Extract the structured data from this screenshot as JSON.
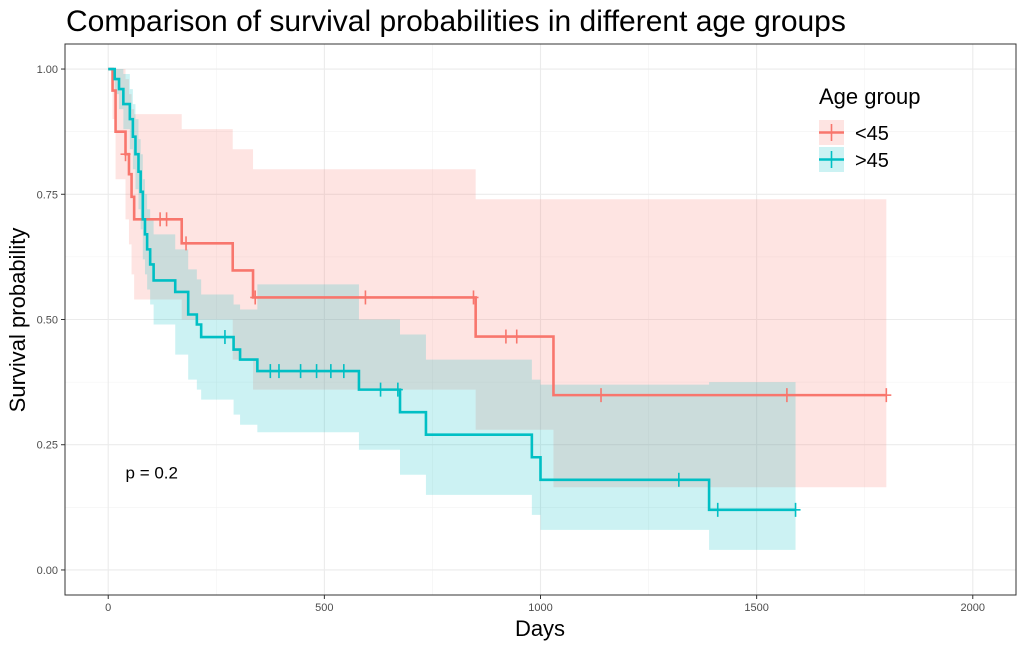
{
  "chart_data": {
    "type": "line",
    "subtype": "kaplan-meier survival curve with confidence bands",
    "title": "Comparison of survival probabilities in different age groups",
    "xlabel": "Days",
    "ylabel": "Survival probability",
    "xlim": [
      -100,
      2100
    ],
    "ylim": [
      -0.05,
      1.05
    ],
    "xticks": [
      0,
      500,
      1000,
      1500,
      2000
    ],
    "xtick_labels": [
      "0",
      "500",
      "1000",
      "1500",
      "2000"
    ],
    "yticks": [
      0,
      0.25,
      0.5,
      0.75,
      1.0
    ],
    "ytick_labels": [
      "0.00",
      "0.25",
      "0.50",
      "0.75",
      "1.00"
    ],
    "grid": true,
    "legend": {
      "title": "Age group",
      "position": "top-right"
    },
    "annotation": "p = 0.2",
    "annotation_x": 40,
    "annotation_y": 0.195,
    "series": [
      {
        "name": "<45",
        "color": "#F8766D",
        "band_color": "#F8766D",
        "steps": [
          [
            0,
            1.0
          ],
          [
            10,
            0.957
          ],
          [
            17,
            0.875
          ],
          [
            40,
            0.83
          ],
          [
            48,
            0.79
          ],
          [
            54,
            0.745
          ],
          [
            60,
            0.7
          ],
          [
            170,
            0.652
          ],
          [
            288,
            0.598
          ],
          [
            335,
            0.544
          ],
          [
            850,
            0.466
          ],
          [
            1030,
            0.349
          ],
          [
            1800,
            0.349
          ]
        ],
        "lower": [
          [
            0,
            1.0
          ],
          [
            10,
            0.9
          ],
          [
            17,
            0.78
          ],
          [
            40,
            0.7
          ],
          [
            48,
            0.65
          ],
          [
            54,
            0.59
          ],
          [
            60,
            0.54
          ],
          [
            170,
            0.5
          ],
          [
            288,
            0.42
          ],
          [
            335,
            0.36
          ],
          [
            850,
            0.28
          ],
          [
            1030,
            0.165
          ],
          [
            1800,
            0.165
          ]
        ],
        "upper": [
          [
            0,
            1.0
          ],
          [
            10,
            1.0
          ],
          [
            17,
            1.0
          ],
          [
            40,
            0.98
          ],
          [
            48,
            0.95
          ],
          [
            54,
            0.92
          ],
          [
            60,
            0.91
          ],
          [
            170,
            0.88
          ],
          [
            288,
            0.84
          ],
          [
            335,
            0.8
          ],
          [
            850,
            0.74
          ],
          [
            1030,
            0.74
          ],
          [
            1800,
            0.74
          ]
        ],
        "censored": [
          [
            40,
            0.83
          ],
          [
            120,
            0.7
          ],
          [
            135,
            0.7
          ],
          [
            180,
            0.652
          ],
          [
            340,
            0.544
          ],
          [
            595,
            0.544
          ],
          [
            845,
            0.544
          ],
          [
            920,
            0.466
          ],
          [
            945,
            0.466
          ],
          [
            1140,
            0.349
          ],
          [
            1570,
            0.349
          ],
          [
            1800,
            0.349
          ]
        ]
      },
      {
        "name": ">45",
        "color": "#00BFC4",
        "band_color": "#00BFC4",
        "steps": [
          [
            0,
            1.0
          ],
          [
            15,
            0.98
          ],
          [
            25,
            0.96
          ],
          [
            35,
            0.93
          ],
          [
            50,
            0.9
          ],
          [
            57,
            0.865
          ],
          [
            63,
            0.83
          ],
          [
            70,
            0.795
          ],
          [
            75,
            0.755
          ],
          [
            80,
            0.7
          ],
          [
            85,
            0.67
          ],
          [
            90,
            0.64
          ],
          [
            97,
            0.61
          ],
          [
            105,
            0.578
          ],
          [
            155,
            0.555
          ],
          [
            185,
            0.51
          ],
          [
            205,
            0.49
          ],
          [
            215,
            0.465
          ],
          [
            290,
            0.44
          ],
          [
            305,
            0.42
          ],
          [
            345,
            0.397
          ],
          [
            580,
            0.36
          ],
          [
            675,
            0.315
          ],
          [
            735,
            0.27
          ],
          [
            980,
            0.225
          ],
          [
            1000,
            0.18
          ],
          [
            1390,
            0.12
          ],
          [
            1590,
            0.12
          ]
        ],
        "lower": [
          [
            0,
            1.0
          ],
          [
            15,
            0.95
          ],
          [
            25,
            0.92
          ],
          [
            35,
            0.88
          ],
          [
            50,
            0.84
          ],
          [
            57,
            0.8
          ],
          [
            63,
            0.76
          ],
          [
            70,
            0.72
          ],
          [
            75,
            0.68
          ],
          [
            80,
            0.62
          ],
          [
            85,
            0.59
          ],
          [
            90,
            0.56
          ],
          [
            97,
            0.53
          ],
          [
            105,
            0.49
          ],
          [
            155,
            0.43
          ],
          [
            185,
            0.38
          ],
          [
            205,
            0.36
          ],
          [
            215,
            0.34
          ],
          [
            290,
            0.31
          ],
          [
            305,
            0.29
          ],
          [
            345,
            0.275
          ],
          [
            580,
            0.24
          ],
          [
            675,
            0.19
          ],
          [
            735,
            0.15
          ],
          [
            980,
            0.11
          ],
          [
            1000,
            0.08
          ],
          [
            1390,
            0.04
          ],
          [
            1590,
            0.04
          ]
        ],
        "upper": [
          [
            0,
            1.0
          ],
          [
            15,
            1.0
          ],
          [
            25,
            1.0
          ],
          [
            35,
            0.99
          ],
          [
            50,
            0.96
          ],
          [
            57,
            0.93
          ],
          [
            63,
            0.9
          ],
          [
            70,
            0.86
          ],
          [
            75,
            0.83
          ],
          [
            80,
            0.78
          ],
          [
            85,
            0.75
          ],
          [
            90,
            0.72
          ],
          [
            97,
            0.7
          ],
          [
            105,
            0.67
          ],
          [
            155,
            0.64
          ],
          [
            185,
            0.6
          ],
          [
            205,
            0.58
          ],
          [
            215,
            0.55
          ],
          [
            290,
            0.53
          ],
          [
            305,
            0.52
          ],
          [
            345,
            0.57
          ],
          [
            580,
            0.5
          ],
          [
            675,
            0.47
          ],
          [
            735,
            0.42
          ],
          [
            980,
            0.38
          ],
          [
            1000,
            0.37
          ],
          [
            1390,
            0.375
          ],
          [
            1590,
            0.375
          ]
        ],
        "censored": [
          [
            270,
            0.465
          ],
          [
            375,
            0.397
          ],
          [
            395,
            0.397
          ],
          [
            445,
            0.397
          ],
          [
            482,
            0.397
          ],
          [
            515,
            0.397
          ],
          [
            545,
            0.397
          ],
          [
            630,
            0.36
          ],
          [
            670,
            0.36
          ],
          [
            1320,
            0.18
          ],
          [
            1410,
            0.12
          ],
          [
            1590,
            0.12
          ]
        ]
      }
    ]
  }
}
